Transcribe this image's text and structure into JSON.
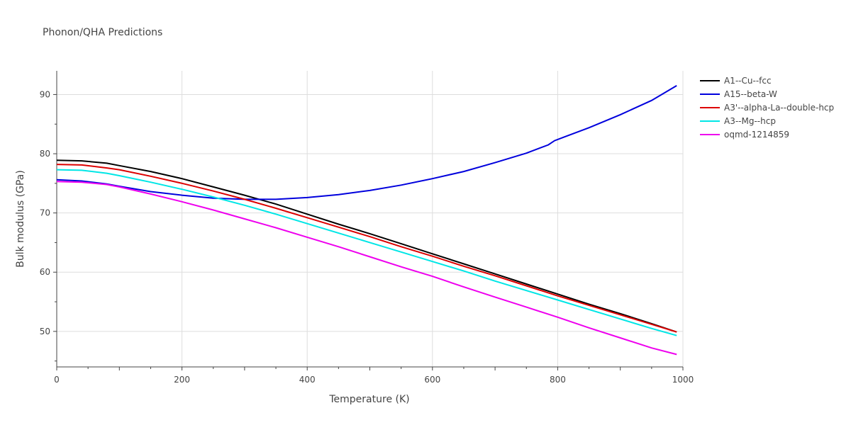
{
  "chart_data": {
    "type": "line",
    "title": "Phonon/QHA Predictions",
    "xlabel": "Temperature (K)",
    "ylabel": "Bulk modulus (GPa)",
    "xlim": [
      0,
      1000
    ],
    "ylim": [
      44,
      94
    ],
    "xticks": [
      0,
      200,
      400,
      600,
      800,
      1000
    ],
    "yticks": [
      50,
      60,
      70,
      80,
      90
    ],
    "grid": true,
    "legend_position": "right",
    "series": [
      {
        "name": "A1--Cu--fcc",
        "color": "#000000",
        "points": [
          [
            0,
            78.9
          ],
          [
            40,
            78.8
          ],
          [
            80,
            78.4
          ],
          [
            100,
            78.0
          ],
          [
            150,
            77.0
          ],
          [
            200,
            75.8
          ],
          [
            250,
            74.4
          ],
          [
            300,
            73.0
          ],
          [
            350,
            71.5
          ],
          [
            400,
            69.8
          ],
          [
            450,
            68.1
          ],
          [
            500,
            66.5
          ],
          [
            550,
            64.8
          ],
          [
            600,
            63.1
          ],
          [
            650,
            61.4
          ],
          [
            700,
            59.7
          ],
          [
            750,
            58.0
          ],
          [
            800,
            56.3
          ],
          [
            850,
            54.6
          ],
          [
            900,
            53.0
          ],
          [
            950,
            51.3
          ],
          [
            990,
            49.9
          ]
        ]
      },
      {
        "name": "A15--beta-W",
        "color": "#0000dd",
        "points": [
          [
            0,
            75.6
          ],
          [
            40,
            75.4
          ],
          [
            80,
            74.9
          ],
          [
            100,
            74.5
          ],
          [
            150,
            73.6
          ],
          [
            200,
            73.0
          ],
          [
            250,
            72.5
          ],
          [
            300,
            72.3
          ],
          [
            350,
            72.3
          ],
          [
            400,
            72.6
          ],
          [
            450,
            73.1
          ],
          [
            500,
            73.8
          ],
          [
            550,
            74.7
          ],
          [
            600,
            75.8
          ],
          [
            650,
            77.0
          ],
          [
            700,
            78.5
          ],
          [
            750,
            80.1
          ],
          [
            785,
            81.5
          ],
          [
            795,
            82.2
          ],
          [
            810,
            82.8
          ],
          [
            850,
            84.4
          ],
          [
            900,
            86.6
          ],
          [
            950,
            89.0
          ],
          [
            990,
            91.5
          ]
        ]
      },
      {
        "name": "A3'--alpha-La--double-hcp",
        "color": "#dd0000",
        "points": [
          [
            0,
            78.2
          ],
          [
            40,
            78.1
          ],
          [
            80,
            77.6
          ],
          [
            100,
            77.3
          ],
          [
            150,
            76.2
          ],
          [
            200,
            75.0
          ],
          [
            250,
            73.7
          ],
          [
            300,
            72.3
          ],
          [
            350,
            70.8
          ],
          [
            400,
            69.2
          ],
          [
            450,
            67.6
          ],
          [
            500,
            66.0
          ],
          [
            550,
            64.3
          ],
          [
            600,
            62.7
          ],
          [
            650,
            61.0
          ],
          [
            700,
            59.4
          ],
          [
            750,
            57.7
          ],
          [
            800,
            56.0
          ],
          [
            850,
            54.4
          ],
          [
            900,
            52.8
          ],
          [
            950,
            51.2
          ],
          [
            990,
            49.9
          ]
        ]
      },
      {
        "name": "A3--Mg--hcp",
        "color": "#00e6e6",
        "points": [
          [
            0,
            77.3
          ],
          [
            40,
            77.2
          ],
          [
            80,
            76.7
          ],
          [
            100,
            76.3
          ],
          [
            150,
            75.2
          ],
          [
            200,
            74.0
          ],
          [
            250,
            72.7
          ],
          [
            300,
            71.3
          ],
          [
            350,
            69.8
          ],
          [
            400,
            68.2
          ],
          [
            450,
            66.6
          ],
          [
            500,
            65.0
          ],
          [
            550,
            63.4
          ],
          [
            600,
            61.8
          ],
          [
            650,
            60.2
          ],
          [
            700,
            58.5
          ],
          [
            750,
            56.9
          ],
          [
            800,
            55.3
          ],
          [
            850,
            53.7
          ],
          [
            900,
            52.1
          ],
          [
            950,
            50.5
          ],
          [
            990,
            49.3
          ]
        ]
      },
      {
        "name": "oqmd-1214859",
        "color": "#ee00ee",
        "points": [
          [
            0,
            75.3
          ],
          [
            40,
            75.2
          ],
          [
            80,
            74.8
          ],
          [
            100,
            74.4
          ],
          [
            150,
            73.2
          ],
          [
            200,
            71.9
          ],
          [
            250,
            70.5
          ],
          [
            300,
            69.0
          ],
          [
            350,
            67.5
          ],
          [
            400,
            65.9
          ],
          [
            450,
            64.3
          ],
          [
            500,
            62.6
          ],
          [
            550,
            60.9
          ],
          [
            600,
            59.3
          ],
          [
            650,
            57.5
          ],
          [
            700,
            55.8
          ],
          [
            750,
            54.1
          ],
          [
            800,
            52.4
          ],
          [
            850,
            50.6
          ],
          [
            900,
            48.9
          ],
          [
            950,
            47.2
          ],
          [
            990,
            46.1
          ]
        ]
      }
    ]
  }
}
